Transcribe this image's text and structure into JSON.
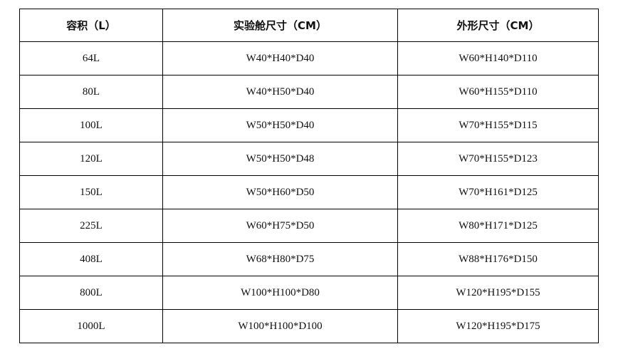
{
  "table": {
    "headers": [
      "容积（L）",
      "实验舱尺寸（CM）",
      "外形尺寸（CM）"
    ],
    "rows": [
      [
        "64L",
        "W40*H40*D40",
        "W60*H140*D110"
      ],
      [
        "80L",
        "W40*H50*D40",
        "W60*H155*D110"
      ],
      [
        "100L",
        "W50*H50*D40",
        "W70*H155*D115"
      ],
      [
        "120L",
        "W50*H50*D48",
        "W70*H155*D123"
      ],
      [
        "150L",
        "W50*H60*D50",
        "W70*H161*D125"
      ],
      [
        "225L",
        "W60*H75*D50",
        "W80*H171*D125"
      ],
      [
        "408L",
        "W68*H80*D75",
        "W88*H176*D150"
      ],
      [
        "800L",
        "W100*H100*D80",
        "W120*H195*D155"
      ],
      [
        "1000L",
        "W100*H100*D100",
        "W120*H195*D175"
      ]
    ]
  }
}
